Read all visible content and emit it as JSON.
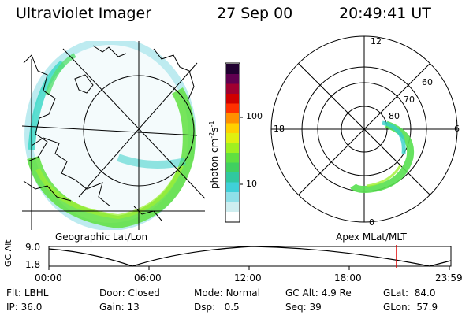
{
  "header": {
    "instrument": "Ultraviolet Imager",
    "date": "27 Sep 00",
    "time": "20:49:41 UT"
  },
  "colorbar": {
    "unit_label": "photon cm",
    "unit_exp1": "-2",
    "unit_s": "s",
    "unit_exp2": "-1",
    "tick_100": "100",
    "tick_10": "10",
    "colors": [
      "#ffffff",
      "#cfeef0",
      "#8fe0e8",
      "#40d0d8",
      "#30c8a0",
      "#40d060",
      "#60e040",
      "#a0f020",
      "#e0f010",
      "#ffd000",
      "#ff9000",
      "#ff3000",
      "#d00000",
      "#a00030",
      "#600050",
      "#200030"
    ]
  },
  "left_map": {
    "caption": "Geographic Lat/Lon"
  },
  "polar_plot": {
    "caption": "Apex MLat/MLT",
    "mlt_12": "12",
    "mlt_18": "18",
    "mlt_6": "6",
    "mlt_0": "0",
    "lat_60": "60",
    "lat_70": "70",
    "lat_80": "80"
  },
  "altitude_plot": {
    "ylabel": "GC Alt",
    "y_top": "9.0",
    "y_bottom": "1.8",
    "x_ticks": [
      "00:00",
      "06:00",
      "12:00",
      "18:00",
      "23:59"
    ],
    "marker_color": "#e00000"
  },
  "info": {
    "flt_label": "Flt:",
    "flt_value": "LBHL",
    "ip_label": "IP:",
    "ip_value": "36.0",
    "door_label": "Door:",
    "door_value": "Closed",
    "gain_label": "Gain:",
    "gain_value": "13",
    "mode_label": "Mode:",
    "mode_value": "Normal",
    "dsp_label": "Dsp:",
    "dsp_value": "0.5",
    "gcalt_label": "GC Alt:",
    "gcalt_value": "4.9 Re",
    "seq_label": "Seq:",
    "seq_value": "39",
    "glat_label": "GLat:",
    "glat_value": "84.0",
    "glon_label": "GLon:",
    "glon_value": "57.9"
  }
}
